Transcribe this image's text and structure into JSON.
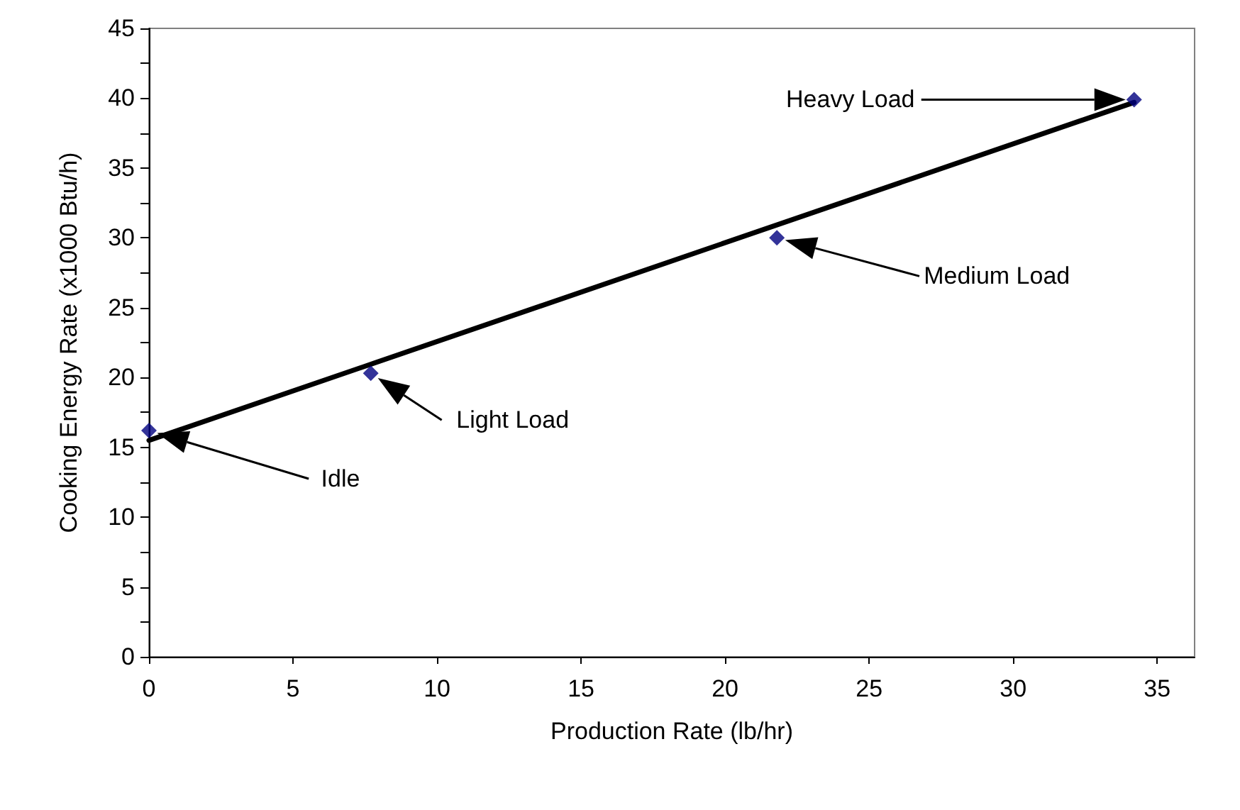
{
  "chart_data": {
    "type": "scatter",
    "xlabel": "Production Rate (lb/hr)",
    "ylabel": "Cooking Energy Rate (x1000 Btu/h)",
    "marker": "diamond",
    "series": [
      {
        "color": "#000080",
        "x": [
          0,
          7.7,
          21.8,
          34.2
        ],
        "values": [
          16.2,
          20.3,
          30.0,
          39.9
        ]
      },
      {
        "type": "line",
        "color": "#000000",
        "marker": "none",
        "x": [
          0,
          34.2
        ],
        "values": [
          15.5,
          39.7
        ]
      }
    ],
    "annotations": [
      "Idle",
      "Light Load",
      "Medium Load",
      "Heavy Load"
    ],
    "xlim": [
      0,
      36.3
    ],
    "xticks": [
      0,
      5,
      10,
      15,
      20,
      25,
      30,
      35
    ],
    "ylim": [
      0,
      45
    ],
    "yticks": [
      0,
      5,
      10,
      15,
      20,
      25,
      30,
      35,
      40,
      45
    ],
    "grid": false
  }
}
